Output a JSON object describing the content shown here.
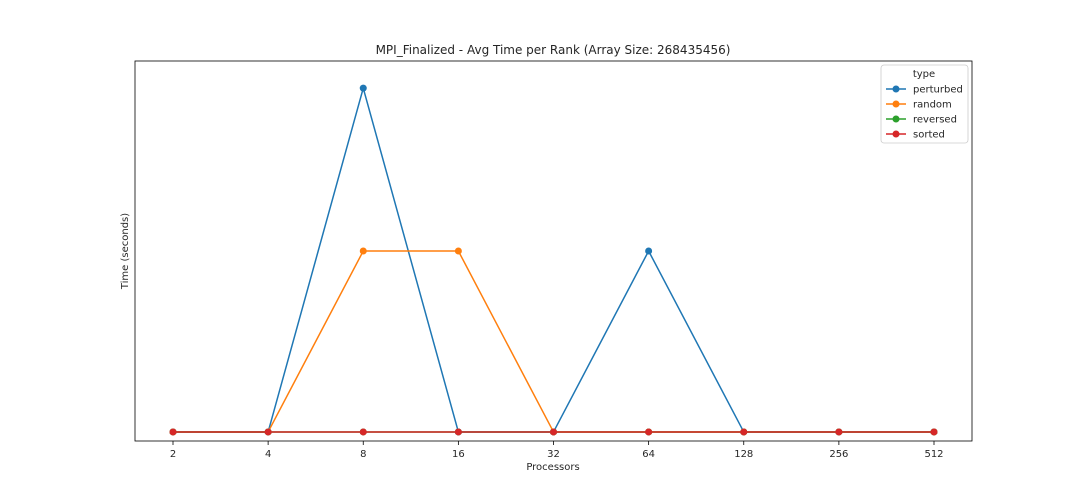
{
  "chart_data": {
    "type": "line",
    "title": "MPI_Finalized - Avg Time per Rank (Array Size: 268435456)",
    "xlabel": "Processors",
    "ylabel": "Time (seconds)",
    "categories": [
      "2",
      "4",
      "8",
      "16",
      "32",
      "64",
      "128",
      "256",
      "512"
    ],
    "x_scale": "log2",
    "y_tick_labels": "none",
    "ylim": [
      -0.05,
      2.05
    ],
    "legend": {
      "title": "type",
      "placement": "top-right"
    },
    "series": [
      {
        "name": "perturbed",
        "color": "#1f77b4",
        "values": [
          0,
          0,
          1.9,
          0,
          0,
          1.0,
          0,
          0,
          0
        ]
      },
      {
        "name": "random",
        "color": "#ff7f0e",
        "values": [
          0,
          0,
          1.0,
          1.0,
          0,
          0,
          0,
          0,
          0
        ]
      },
      {
        "name": "reversed",
        "color": "#2ca02c",
        "values": [
          0,
          0,
          0,
          0,
          0,
          0,
          0,
          0,
          0
        ]
      },
      {
        "name": "sorted",
        "color": "#d62728",
        "values": [
          0,
          0,
          0,
          0,
          0,
          0,
          0,
          0,
          0
        ]
      }
    ]
  }
}
